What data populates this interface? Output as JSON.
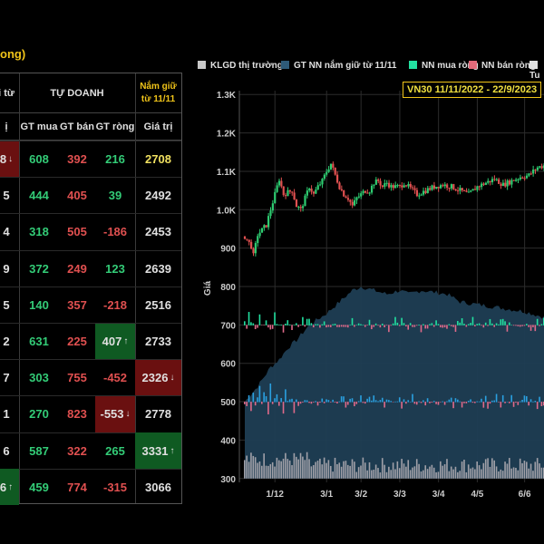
{
  "page": {
    "title_fragment": "ong)"
  },
  "table": {
    "group_left": "i từ",
    "group_mid": "TỰ DOANH",
    "group_right": "Nắm giữ từ 11/11",
    "headers": [
      "ị",
      "GT mua",
      "GT bán",
      "GT ròng",
      "Giá trị"
    ],
    "rows": [
      {
        "c0": "8",
        "c0_arrow": "↓",
        "c0_style": "bg-red",
        "buy": "608",
        "buy_style": "green",
        "sell": "392",
        "net": "216",
        "net_style": "green",
        "net_arrow": "",
        "net_bg": "",
        "val": "2708",
        "val_style": "yellow",
        "val_arrow": "",
        "val_bg": ""
      },
      {
        "c0": "5",
        "c0_arrow": "",
        "c0_style": "",
        "buy": "444",
        "buy_style": "green",
        "sell": "405",
        "net": "39",
        "net_style": "green",
        "net_arrow": "",
        "net_bg": "",
        "val": "2492",
        "val_style": "white",
        "val_arrow": "",
        "val_bg": ""
      },
      {
        "c0": "4",
        "c0_arrow": "",
        "c0_style": "",
        "buy": "318",
        "buy_style": "green",
        "sell": "505",
        "net": "-186",
        "net_style": "red",
        "net_arrow": "",
        "net_bg": "",
        "val": "2453",
        "val_style": "white",
        "val_arrow": "",
        "val_bg": ""
      },
      {
        "c0": "9",
        "c0_arrow": "",
        "c0_style": "",
        "buy": "372",
        "buy_style": "green",
        "sell": "249",
        "net": "123",
        "net_style": "green",
        "net_arrow": "",
        "net_bg": "",
        "val": "2639",
        "val_style": "white",
        "val_arrow": "",
        "val_bg": ""
      },
      {
        "c0": "5",
        "c0_arrow": "",
        "c0_style": "",
        "buy": "140",
        "buy_style": "green",
        "sell": "357",
        "net": "-218",
        "net_style": "red",
        "net_arrow": "",
        "net_bg": "",
        "val": "2516",
        "val_style": "white",
        "val_arrow": "",
        "val_bg": ""
      },
      {
        "c0": "2",
        "c0_arrow": "",
        "c0_style": "",
        "buy": "631",
        "buy_style": "green",
        "sell": "225",
        "net": "407",
        "net_style": "white",
        "net_arrow": "↑",
        "net_bg": "bg-green",
        "val": "2733",
        "val_style": "white",
        "val_arrow": "",
        "val_bg": ""
      },
      {
        "c0": "7",
        "c0_arrow": "",
        "c0_style": "",
        "buy": "303",
        "buy_style": "green",
        "sell": "755",
        "net": "-452",
        "net_style": "red",
        "net_arrow": "",
        "net_bg": "",
        "val": "2326",
        "val_style": "white",
        "val_arrow": "↓",
        "val_bg": "bg-red"
      },
      {
        "c0": "1",
        "c0_arrow": "",
        "c0_style": "",
        "buy": "270",
        "buy_style": "green",
        "sell": "823",
        "net": "-553",
        "net_style": "white",
        "net_arrow": "↓",
        "net_bg": "bg-red",
        "val": "2778",
        "val_style": "white",
        "val_arrow": "",
        "val_bg": ""
      },
      {
        "c0": "6",
        "c0_arrow": "",
        "c0_style": "",
        "buy": "587",
        "buy_style": "green",
        "sell": "322",
        "net": "265",
        "net_style": "green",
        "net_arrow": "",
        "net_bg": "",
        "val": "3331",
        "val_style": "white",
        "val_arrow": "↑",
        "val_bg": "bg-green"
      },
      {
        "c0": "6",
        "c0_arrow": "↑",
        "c0_style": "bg-green",
        "buy": "459",
        "buy_style": "green",
        "sell": "774",
        "net": "-315",
        "net_style": "red",
        "net_arrow": "",
        "net_bg": "",
        "val": "3066",
        "val_style": "white",
        "val_arrow": "",
        "val_bg": ""
      }
    ]
  },
  "chart_data": {
    "type": "line",
    "title": "VN30 11/11/2022 - 22/9/2023",
    "legend": [
      {
        "label": "KLGD thị trường",
        "color": "#c8c8c8"
      },
      {
        "label": "GT NN nắm giữ từ 11/11",
        "color": "#2e5a78"
      },
      {
        "label": "NN mua ròng",
        "color": "#22e0a0"
      },
      {
        "label": "NN bán ròng",
        "color": "#e06a7a"
      },
      {
        "label": "Tu",
        "color": "#e0e0e0"
      }
    ],
    "legend_placement": "top",
    "ylabel": "Giá",
    "yticks": [
      "1.3K",
      "1.2K",
      "1.1K",
      "1.0K",
      "900",
      "800",
      "700",
      "600",
      "500",
      "400",
      "300"
    ],
    "ytick_values": [
      1300,
      1200,
      1100,
      1000,
      900,
      800,
      700,
      600,
      500,
      400,
      300
    ],
    "ylim": [
      290,
      1310
    ],
    "xticks": [
      "1/12",
      "3/1",
      "3/2",
      "3/3",
      "3/4",
      "4/5",
      "6/6"
    ],
    "xtick_index": [
      14,
      38,
      54,
      72,
      90,
      108,
      130
    ],
    "n_sessions": 140,
    "grid": true,
    "price_keypoints": [
      [
        0,
        930
      ],
      [
        3,
        905
      ],
      [
        4,
        880
      ],
      [
        6,
        935
      ],
      [
        10,
        960
      ],
      [
        12,
        1000
      ],
      [
        14,
        1040
      ],
      [
        16,
        1080
      ],
      [
        18,
        1040
      ],
      [
        22,
        1050
      ],
      [
        24,
        1010
      ],
      [
        26,
        1000
      ],
      [
        28,
        1030
      ],
      [
        30,
        1060
      ],
      [
        32,
        1040
      ],
      [
        34,
        1060
      ],
      [
        36,
        1075
      ],
      [
        38,
        1100
      ],
      [
        40,
        1120
      ],
      [
        42,
        1090
      ],
      [
        44,
        1060
      ],
      [
        46,
        1040
      ],
      [
        48,
        1030
      ],
      [
        50,
        1010
      ],
      [
        52,
        1030
      ],
      [
        54,
        1040
      ],
      [
        56,
        1050
      ],
      [
        58,
        1050
      ],
      [
        60,
        1070
      ],
      [
        62,
        1075
      ],
      [
        64,
        1060
      ],
      [
        66,
        1070
      ],
      [
        68,
        1060
      ],
      [
        72,
        1060
      ],
      [
        74,
        1070
      ],
      [
        76,
        1060
      ],
      [
        78,
        1050
      ],
      [
        80,
        1040
      ],
      [
        84,
        1050
      ],
      [
        88,
        1060
      ],
      [
        92,
        1065
      ],
      [
        96,
        1060
      ],
      [
        100,
        1050
      ],
      [
        104,
        1040
      ],
      [
        108,
        1060
      ],
      [
        112,
        1070
      ],
      [
        116,
        1080
      ],
      [
        120,
        1065
      ],
      [
        124,
        1075
      ],
      [
        128,
        1085
      ],
      [
        132,
        1090
      ],
      [
        136,
        1110
      ],
      [
        139,
        1115
      ]
    ],
    "holding_keypoints": [
      [
        0,
        500
      ],
      [
        6,
        540
      ],
      [
        12,
        590
      ],
      [
        16,
        610
      ],
      [
        20,
        640
      ],
      [
        24,
        660
      ],
      [
        30,
        700
      ],
      [
        38,
        730
      ],
      [
        44,
        760
      ],
      [
        50,
        790
      ],
      [
        54,
        800
      ],
      [
        60,
        790
      ],
      [
        66,
        780
      ],
      [
        72,
        790
      ],
      [
        76,
        780
      ],
      [
        82,
        790
      ],
      [
        88,
        785
      ],
      [
        94,
        780
      ],
      [
        100,
        760
      ],
      [
        106,
        755
      ],
      [
        112,
        750
      ],
      [
        118,
        745
      ],
      [
        124,
        740
      ],
      [
        130,
        735
      ],
      [
        136,
        725
      ],
      [
        139,
        720
      ]
    ],
    "net_flow_baseline": 700,
    "volume_baseline": 300,
    "net_flow_baseline_2": 500
  }
}
